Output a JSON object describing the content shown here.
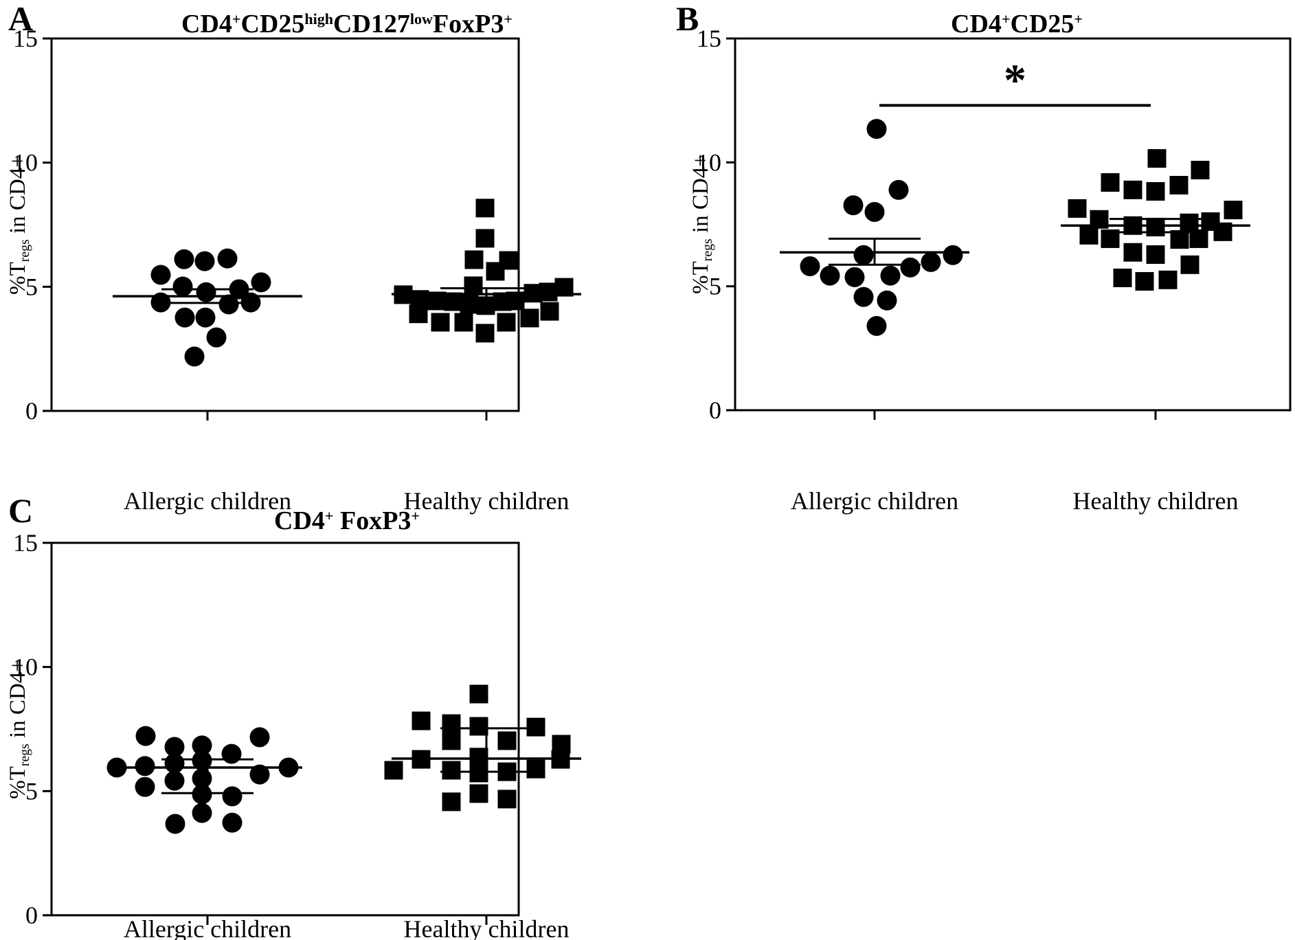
{
  "figure": {
    "background": "#ffffff",
    "ink_color": "#000000",
    "panel_letters": [
      "A",
      "B",
      "C"
    ]
  },
  "chart_data": [
    {
      "type": "scatter",
      "panel_letter": "A",
      "title_plain": "CD4+CD25highCD127lowFoxP3+",
      "title_parts": [
        [
          "CD4",
          "t"
        ],
        [
          "+",
          "sup"
        ],
        [
          "CD25",
          "t"
        ],
        [
          "high",
          "sup"
        ],
        [
          "CD127",
          "t"
        ],
        [
          "low",
          "sup"
        ],
        [
          "FoxP3",
          "t"
        ],
        [
          "+",
          "sup"
        ]
      ],
      "ylabel_plain": "%Tregs in CD4+",
      "ylabel_parts": [
        [
          "%T",
          "t"
        ],
        [
          "regs",
          "sub"
        ],
        [
          " in CD4+",
          "t"
        ]
      ],
      "xlabel": "",
      "ylim": [
        0,
        15
      ],
      "yticks": [
        0,
        5,
        10,
        15
      ],
      "categories": [
        "Allergic children",
        "Healthy children"
      ],
      "groups": [
        {
          "label": "Allergic children",
          "marker": "circle",
          "mean": 4.62,
          "sem_upper": 4.9,
          "sem_lower": 4.35,
          "points": [
            [
              -34,
              6.11
            ],
            [
              -4,
              6.03
            ],
            [
              29,
              6.14
            ],
            [
              -68,
              5.48
            ],
            [
              -36,
              5.01
            ],
            [
              -2,
              4.78
            ],
            [
              46,
              4.9
            ],
            [
              78,
              5.18
            ],
            [
              -68,
              4.37
            ],
            [
              31,
              4.29
            ],
            [
              63,
              4.37
            ],
            [
              -33,
              3.76
            ],
            [
              -3,
              3.76
            ],
            [
              13,
              2.96
            ],
            [
              -19,
              2.19
            ]
          ]
        },
        {
          "label": "Healthy children",
          "marker": "square",
          "mean": 4.7,
          "sem_upper": 4.94,
          "sem_lower": 4.46,
          "points": [
            [
              -2,
              8.17
            ],
            [
              -2,
              6.95
            ],
            [
              -18,
              6.09
            ],
            [
              32,
              6.06
            ],
            [
              13,
              5.62
            ],
            [
              -19,
              5.04
            ],
            [
              -121,
              4.68
            ],
            [
              -97,
              4.49
            ],
            [
              -72,
              4.43
            ],
            [
              -48,
              4.4
            ],
            [
              -25,
              4.29
            ],
            [
              -1,
              4.24
            ],
            [
              23,
              4.4
            ],
            [
              42,
              4.43
            ],
            [
              68,
              4.74
            ],
            [
              90,
              4.79
            ],
            [
              113,
              4.98
            ],
            [
              -99,
              3.91
            ],
            [
              -67,
              3.57
            ],
            [
              -33,
              3.57
            ],
            [
              -2,
              3.13
            ],
            [
              29,
              3.57
            ],
            [
              63,
              3.74
            ],
            [
              92,
              4.01
            ]
          ]
        }
      ],
      "significance": null
    },
    {
      "type": "scatter",
      "panel_letter": "B",
      "title_plain": "CD4+CD25+",
      "title_parts": [
        [
          "CD4",
          "t"
        ],
        [
          "+",
          "sup"
        ],
        [
          "CD25",
          "t"
        ],
        [
          "+",
          "sup"
        ]
      ],
      "ylabel_plain": "%Tregs in CD4+",
      "ylabel_parts": [
        [
          "%T",
          "t"
        ],
        [
          "regs",
          "sub"
        ],
        [
          " in CD4+",
          "t"
        ]
      ],
      "xlabel": "",
      "ylim": [
        0,
        15
      ],
      "yticks": [
        0,
        5,
        10,
        15
      ],
      "categories": [
        "Allergic children",
        "Healthy children"
      ],
      "groups": [
        {
          "label": "Allergic children",
          "marker": "circle",
          "mean": 6.37,
          "sem_upper": 6.92,
          "sem_lower": 5.87,
          "points": [
            [
              3,
              11.35
            ],
            [
              35,
              8.89
            ],
            [
              -31,
              8.27
            ],
            [
              0,
              8.0
            ],
            [
              -16,
              6.26
            ],
            [
              114,
              6.26
            ],
            [
              82,
              5.98
            ],
            [
              52,
              5.76
            ],
            [
              -94,
              5.81
            ],
            [
              -65,
              5.43
            ],
            [
              -29,
              5.37
            ],
            [
              23,
              5.43
            ],
            [
              -16,
              4.57
            ],
            [
              18,
              4.43
            ],
            [
              3,
              3.4
            ]
          ]
        },
        {
          "label": "Healthy children",
          "marker": "square",
          "mean": 7.45,
          "sem_upper": 7.72,
          "sem_lower": 7.18,
          "points": [
            [
              2,
              10.16
            ],
            [
              65,
              9.69
            ],
            [
              -66,
              9.19
            ],
            [
              -33,
              8.89
            ],
            [
              0,
              8.83
            ],
            [
              34,
              9.08
            ],
            [
              -114,
              8.14
            ],
            [
              113,
              8.08
            ],
            [
              -82,
              7.7
            ],
            [
              -33,
              7.45
            ],
            [
              0,
              7.39
            ],
            [
              49,
              7.56
            ],
            [
              80,
              7.61
            ],
            [
              98,
              7.2
            ],
            [
              -97,
              7.06
            ],
            [
              -66,
              6.92
            ],
            [
              35,
              6.89
            ],
            [
              63,
              6.92
            ],
            [
              -33,
              6.37
            ],
            [
              0,
              6.28
            ],
            [
              50,
              5.87
            ],
            [
              -48,
              5.34
            ],
            [
              -16,
              5.2
            ],
            [
              18,
              5.26
            ]
          ]
        }
      ],
      "significance": {
        "text": "*",
        "value": 12.3
      }
    },
    {
      "type": "scatter",
      "panel_letter": "C",
      "title_plain": "CD4+ FoxP3+",
      "title_parts": [
        [
          "CD4",
          "t"
        ],
        [
          "+",
          "sup"
        ],
        [
          " FoxP3",
          "t"
        ],
        [
          "+",
          "sup"
        ]
      ],
      "ylabel_plain": "%Tregs in CD4+",
      "ylabel_parts": [
        [
          "%T",
          "t"
        ],
        [
          "regs",
          "sub"
        ],
        [
          " in CD4+",
          "t"
        ]
      ],
      "xlabel": "",
      "ylim": [
        0,
        15
      ],
      "yticks": [
        0,
        5,
        10,
        15
      ],
      "categories": [
        "Allergic children",
        "Healthy children"
      ],
      "groups": [
        {
          "label": "Allergic children",
          "marker": "circle",
          "mean": 5.95,
          "sem_upper": 6.28,
          "sem_lower": 4.92,
          "points": [
            [
              -90,
              7.22
            ],
            [
              -48,
              6.78
            ],
            [
              -8,
              6.84
            ],
            [
              35,
              6.5
            ],
            [
              76,
              7.17
            ],
            [
              -132,
              5.95
            ],
            [
              -91,
              6.01
            ],
            [
              -48,
              6.12
            ],
            [
              -8,
              6.23
            ],
            [
              118,
              5.95
            ],
            [
              76,
              5.67
            ],
            [
              -91,
              5.17
            ],
            [
              -48,
              5.42
            ],
            [
              -8,
              5.51
            ],
            [
              -8,
              4.87
            ],
            [
              36,
              4.79
            ],
            [
              -8,
              4.12
            ],
            [
              -47,
              3.68
            ],
            [
              36,
              3.73
            ]
          ]
        },
        {
          "label": "Healthy children",
          "marker": "square",
          "mean": 6.31,
          "sem_upper": 7.53,
          "sem_lower": 5.78,
          "points": [
            [
              -11,
              8.91
            ],
            [
              -95,
              7.83
            ],
            [
              -51,
              7.72
            ],
            [
              -11,
              7.61
            ],
            [
              72,
              7.58
            ],
            [
              30,
              7.03
            ],
            [
              -51,
              7.03
            ],
            [
              109,
              6.89
            ],
            [
              -95,
              6.28
            ],
            [
              -11,
              6.37
            ],
            [
              108,
              6.28
            ],
            [
              -135,
              5.84
            ],
            [
              -51,
              5.84
            ],
            [
              -11,
              5.73
            ],
            [
              30,
              5.78
            ],
            [
              72,
              5.89
            ],
            [
              -11,
              4.9
            ],
            [
              30,
              4.68
            ],
            [
              -51,
              4.57
            ]
          ]
        }
      ],
      "significance": null
    }
  ]
}
